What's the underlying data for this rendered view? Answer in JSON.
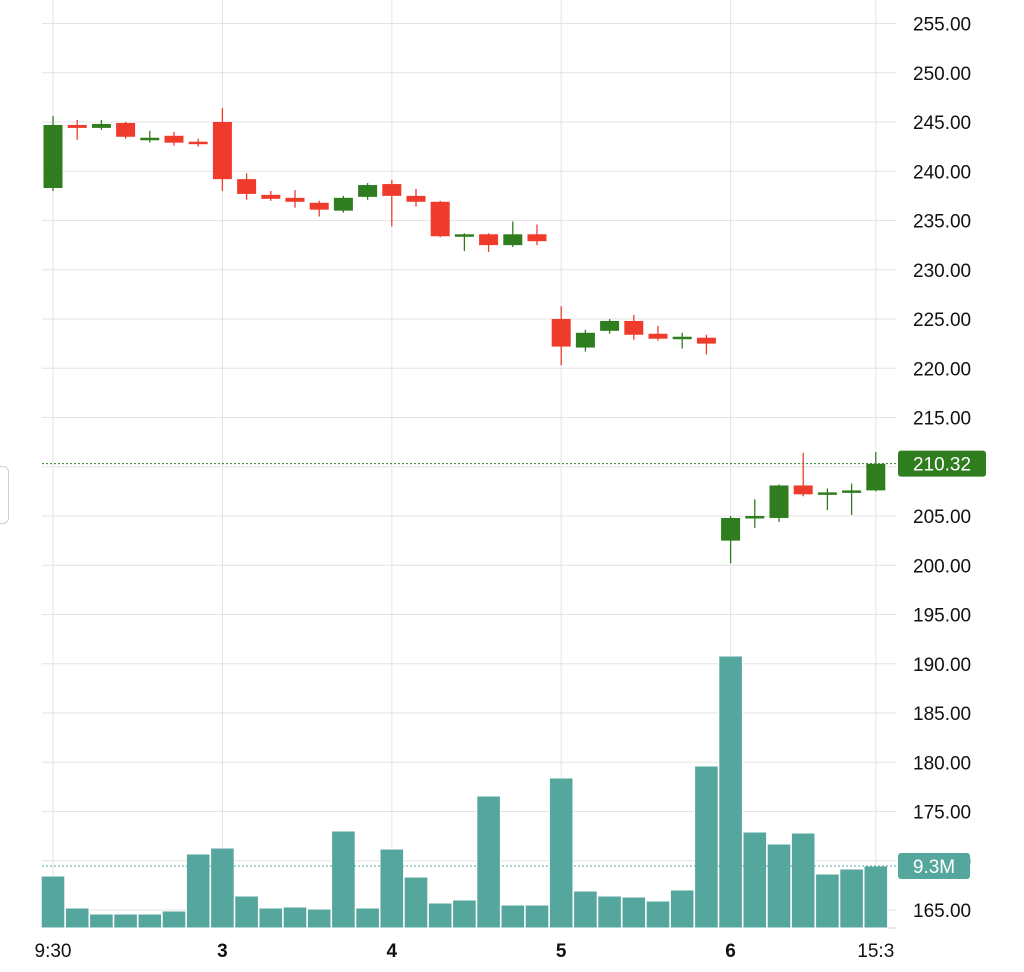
{
  "chart_data": {
    "type": "candlestick",
    "title": "",
    "price_axis": {
      "ylim": [
        163,
        256
      ],
      "ticks": [
        "165.00",
        "170.00",
        "175.00",
        "180.00",
        "185.00",
        "190.00",
        "195.00",
        "200.00",
        "205.00",
        "210.00",
        "215.00",
        "220.00",
        "225.00",
        "230.00",
        "235.00",
        "240.00",
        "245.00",
        "250.00",
        "255.00"
      ]
    },
    "x_ticks": [
      {
        "label": "9:30",
        "at": 0
      },
      {
        "label": "3",
        "at": 7
      },
      {
        "label": "4",
        "at": 14
      },
      {
        "label": "5",
        "at": 21
      },
      {
        "label": "6",
        "at": 28
      },
      {
        "label": "15:3",
        "at": 34
      }
    ],
    "bars": [
      {
        "o": 238.3,
        "h": 245.6,
        "l": 238.0,
        "c": 244.7,
        "v": 52
      },
      {
        "o": 244.7,
        "h": 245.2,
        "l": 243.2,
        "c": 244.4,
        "v": 20
      },
      {
        "o": 244.4,
        "h": 245.2,
        "l": 244.2,
        "c": 244.8,
        "v": 14
      },
      {
        "o": 244.9,
        "h": 245.0,
        "l": 243.3,
        "c": 243.5,
        "v": 14
      },
      {
        "o": 243.4,
        "h": 244.1,
        "l": 242.9,
        "c": 243.4,
        "v": 14
      },
      {
        "o": 243.6,
        "h": 244.0,
        "l": 242.6,
        "c": 242.9,
        "v": 17
      },
      {
        "o": 243.0,
        "h": 243.3,
        "l": 242.5,
        "c": 242.8,
        "v": 74
      },
      {
        "o": 245.0,
        "h": 246.4,
        "l": 238.0,
        "c": 239.2,
        "v": 80
      },
      {
        "o": 239.2,
        "h": 239.8,
        "l": 237.1,
        "c": 237.7,
        "v": 32
      },
      {
        "o": 237.6,
        "h": 238.0,
        "l": 237.0,
        "c": 237.2,
        "v": 20
      },
      {
        "o": 237.3,
        "h": 238.1,
        "l": 236.3,
        "c": 236.9,
        "v": 21
      },
      {
        "o": 236.8,
        "h": 237.0,
        "l": 235.4,
        "c": 236.1,
        "v": 19
      },
      {
        "o": 236.0,
        "h": 237.5,
        "l": 235.8,
        "c": 237.3,
        "v": 97
      },
      {
        "o": 237.4,
        "h": 238.8,
        "l": 237.1,
        "c": 238.6,
        "v": 20
      },
      {
        "o": 238.7,
        "h": 239.1,
        "l": 234.4,
        "c": 237.5,
        "v": 79
      },
      {
        "o": 237.5,
        "h": 238.2,
        "l": 236.4,
        "c": 236.9,
        "v": 51
      },
      {
        "o": 236.9,
        "h": 237.0,
        "l": 233.3,
        "c": 233.4,
        "v": 25
      },
      {
        "o": 233.4,
        "h": 233.7,
        "l": 231.9,
        "c": 233.6,
        "v": 28
      },
      {
        "o": 233.6,
        "h": 233.7,
        "l": 231.8,
        "c": 232.5,
        "v": 132
      },
      {
        "o": 232.5,
        "h": 234.9,
        "l": 232.3,
        "c": 233.6,
        "v": 23
      },
      {
        "o": 233.6,
        "h": 234.6,
        "l": 232.5,
        "c": 232.9,
        "v": 23
      },
      {
        "o": 225.0,
        "h": 226.3,
        "l": 220.3,
        "c": 222.2,
        "v": 150
      },
      {
        "o": 222.1,
        "h": 223.9,
        "l": 221.7,
        "c": 223.6,
        "v": 37
      },
      {
        "o": 223.8,
        "h": 225.0,
        "l": 223.5,
        "c": 224.8,
        "v": 32
      },
      {
        "o": 224.8,
        "h": 225.4,
        "l": 222.9,
        "c": 223.4,
        "v": 31
      },
      {
        "o": 223.5,
        "h": 224.3,
        "l": 222.8,
        "c": 223.0,
        "v": 27
      },
      {
        "o": 223.0,
        "h": 223.6,
        "l": 222.0,
        "c": 223.2,
        "v": 38
      },
      {
        "o": 223.1,
        "h": 223.4,
        "l": 221.4,
        "c": 222.5,
        "v": 162
      },
      {
        "o": 202.5,
        "h": 205.0,
        "l": 200.2,
        "c": 204.8,
        "v": 272
      },
      {
        "o": 204.9,
        "h": 206.7,
        "l": 203.8,
        "c": 205.0,
        "v": 96
      },
      {
        "o": 204.8,
        "h": 208.2,
        "l": 204.4,
        "c": 208.1,
        "v": 84
      },
      {
        "o": 208.1,
        "h": 211.4,
        "l": 207.0,
        "c": 207.2,
        "v": 95
      },
      {
        "o": 207.3,
        "h": 207.8,
        "l": 205.6,
        "c": 207.4,
        "v": 54
      },
      {
        "o": 207.4,
        "h": 208.3,
        "l": 205.1,
        "c": 207.6,
        "v": 59
      },
      {
        "o": 207.6,
        "h": 211.5,
        "l": 207.5,
        "c": 210.3,
        "v": 62
      }
    ],
    "last_price": "210.32",
    "last_volume": "9.3M",
    "grid": true,
    "colors": {
      "up": "#2f7d1f",
      "down": "#ef3b2c",
      "volume": "#55a69d",
      "grid": "#e3e3e3",
      "price_tag": "#2f7d1f",
      "volume_tag": "#55a69d"
    }
  }
}
